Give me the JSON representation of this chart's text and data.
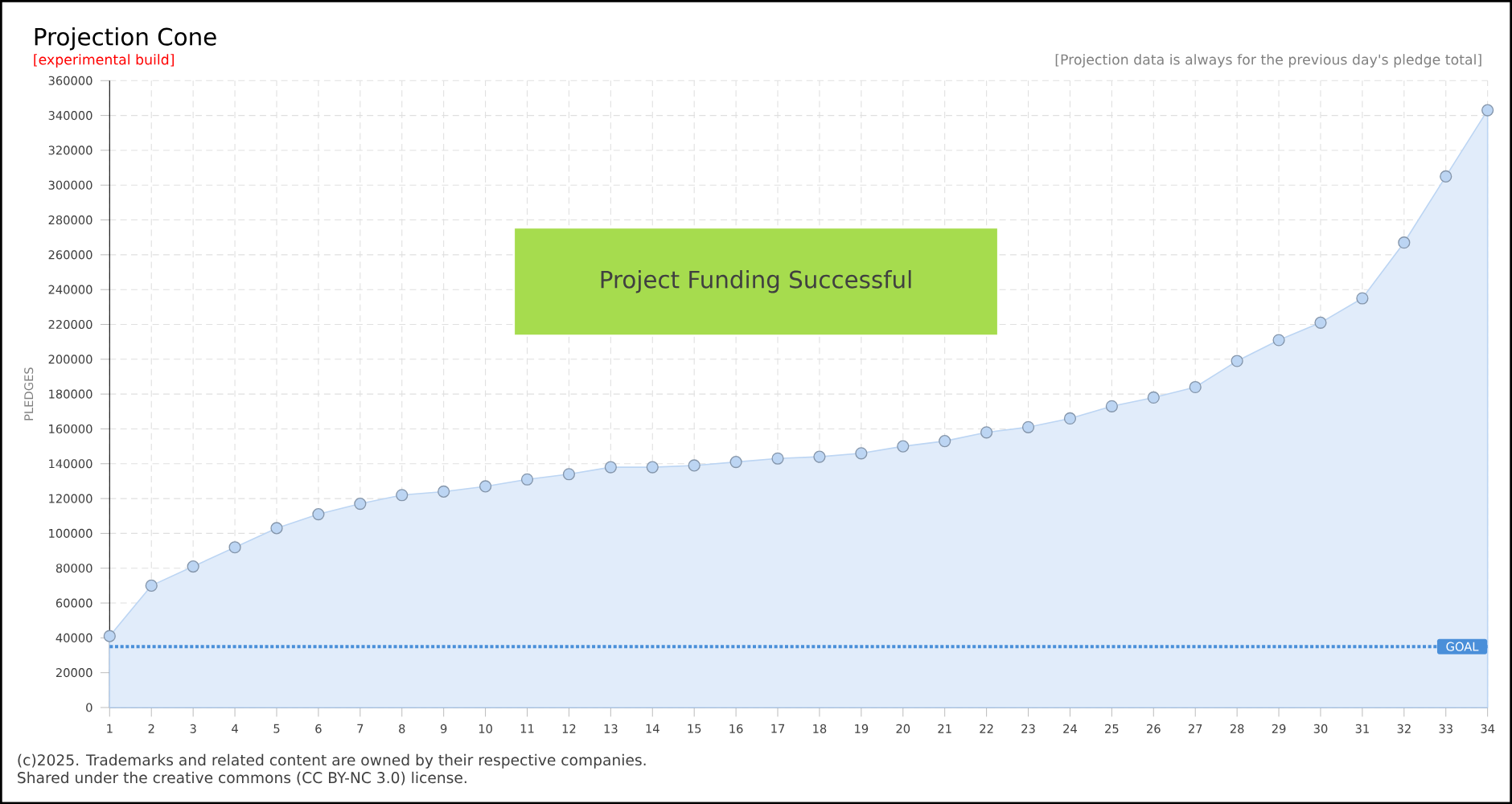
{
  "chart_data": {
    "type": "area",
    "title": "Projection Cone",
    "subtitle": "[experimental build]",
    "ylabel": "PLEDGES",
    "annotations": [
      "[Projection data is always for the previous day's pledge total]",
      "Project Funding Successful",
      "(c)2025. Trademarks and related content are owned by their respective companies.",
      "Shared under the creative commons (CC BY-NC 3.0) license."
    ],
    "x": [
      1,
      2,
      3,
      4,
      5,
      6,
      7,
      8,
      9,
      10,
      11,
      12,
      13,
      14,
      15,
      16,
      17,
      18,
      19,
      20,
      21,
      22,
      23,
      24,
      25,
      26,
      27,
      28,
      29,
      30,
      31,
      32,
      33,
      34
    ],
    "series": [
      {
        "color": "#bcd5f3",
        "values": [
          41000,
          70000,
          81000,
          92000,
          103000,
          111000,
          117000,
          122000,
          124000,
          127000,
          131000,
          134000,
          138000,
          138000,
          139000,
          141000,
          143000,
          144000,
          146000,
          150000,
          153000,
          158000,
          161000,
          166000,
          173000,
          178000,
          184000,
          199000,
          211000,
          221000,
          235000,
          267000,
          305000,
          343000
        ]
      }
    ],
    "xlim": [
      1,
      34
    ],
    "xticks": [
      1,
      2,
      3,
      4,
      5,
      6,
      7,
      8,
      9,
      10,
      11,
      12,
      13,
      14,
      15,
      16,
      17,
      18,
      19,
      20,
      21,
      22,
      23,
      24,
      25,
      26,
      27,
      28,
      29,
      30,
      31,
      32,
      33,
      34
    ],
    "ylim": [
      0,
      360000
    ],
    "yticks": [
      0,
      20000,
      40000,
      60000,
      80000,
      100000,
      120000,
      140000,
      160000,
      180000,
      200000,
      220000,
      240000,
      260000,
      280000,
      300000,
      320000,
      340000,
      360000
    ],
    "ref_lines": [
      {
        "axis": "y",
        "value": 35000,
        "label": "GOAL",
        "color": "#4a8fd9",
        "line_style": "dotted"
      }
    ],
    "grid": true,
    "marker": "circle"
  }
}
